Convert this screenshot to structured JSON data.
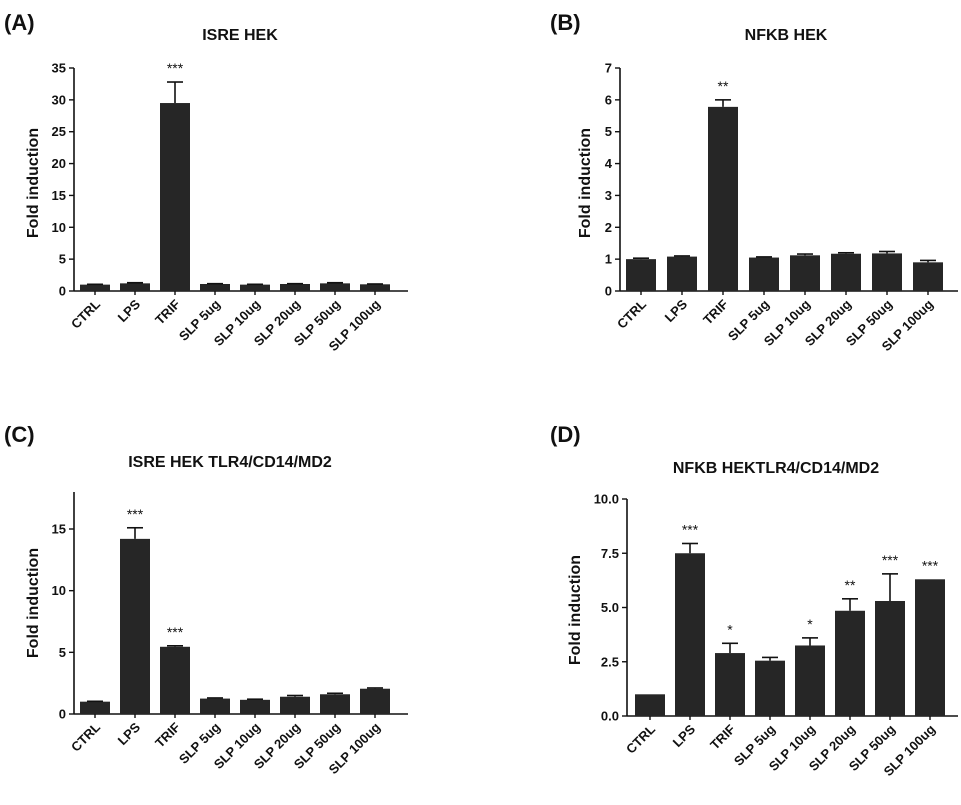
{
  "chart_data": [
    {
      "panel": "(A)",
      "type": "bar",
      "title": "ISRE HEK",
      "ylabel": "Fold induction",
      "xlabel": "",
      "ylim": [
        0,
        35
      ],
      "yticks": [
        "0",
        "5",
        "10",
        "15",
        "20",
        "25",
        "30",
        "35"
      ],
      "categories": [
        "CTRL",
        "LPS",
        "TRIF",
        "SLP 5ug",
        "SLP 10ug",
        "SLP 20ug",
        "SLP 50ug",
        "SLP 100ug"
      ],
      "values": [
        1.0,
        1.2,
        29.5,
        1.1,
        1.0,
        1.1,
        1.2,
        1.05
      ],
      "errors": [
        0.05,
        0.1,
        3.3,
        0.05,
        0.05,
        0.05,
        0.1,
        0.05
      ],
      "significance": [
        "",
        "",
        "***",
        "",
        "",
        "",
        "",
        ""
      ]
    },
    {
      "panel": "(B)",
      "type": "bar",
      "title": "NFKB HEK",
      "ylabel": "Fold induction",
      "xlabel": "",
      "ylim": [
        0,
        7
      ],
      "yticks": [
        "0",
        "1",
        "2",
        "3",
        "4",
        "5",
        "6",
        "7"
      ],
      "categories": [
        "CTRL",
        "LPS",
        "TRIF",
        "SLP 5ug",
        "SLP 10ug",
        "SLP 20ug",
        "SLP 50ug",
        "SLP 100ug"
      ],
      "values": [
        1.0,
        1.08,
        5.78,
        1.05,
        1.12,
        1.17,
        1.18,
        0.9
      ],
      "errors": [
        0.03,
        0.02,
        0.22,
        0.02,
        0.04,
        0.03,
        0.06,
        0.06
      ],
      "significance": [
        "",
        "",
        "**",
        "",
        "",
        "",
        "",
        ""
      ]
    },
    {
      "panel": "(C)",
      "type": "bar",
      "title": "ISRE HEK TLR4/CD14/MD2",
      "ylabel": "Fold induction",
      "xlabel": "",
      "ylim": [
        0,
        18
      ],
      "yticks": [
        "0",
        "5",
        "10",
        "15"
      ],
      "categories": [
        "CTRL",
        "LPS",
        "TRIF",
        "SLP 5ug",
        "SLP 10ug",
        "SLP 20ug",
        "SLP 50ug",
        "SLP 100ug"
      ],
      "values": [
        1.0,
        14.2,
        5.45,
        1.25,
        1.15,
        1.4,
        1.6,
        2.05
      ],
      "errors": [
        0.03,
        0.9,
        0.08,
        0.05,
        0.05,
        0.1,
        0.08,
        0.06
      ],
      "significance": [
        "",
        "***",
        "***",
        "",
        "",
        "",
        "",
        ""
      ]
    },
    {
      "panel": "(D)",
      "type": "bar",
      "title": "NFKB HEKTLR4/CD14/MD2",
      "ylabel": "Fold induction",
      "xlabel": "",
      "ylim": [
        0,
        10
      ],
      "yticks": [
        "0.0",
        "2.5",
        "5.0",
        "7.5",
        "10.0"
      ],
      "categories": [
        "CTRL",
        "LPS",
        "TRIF",
        "SLP 5ug",
        "SLP 10ug",
        "SLP 20ug",
        "SLP 50ug",
        "SLP 100ug"
      ],
      "values": [
        1.0,
        7.5,
        2.9,
        2.55,
        3.25,
        4.85,
        5.3,
        6.3
      ],
      "errors": [
        0.0,
        0.45,
        0.45,
        0.15,
        0.35,
        0.55,
        1.25,
        0.0
      ],
      "significance": [
        "",
        "***",
        "*",
        "",
        "*",
        "**",
        "***",
        "***"
      ]
    }
  ]
}
